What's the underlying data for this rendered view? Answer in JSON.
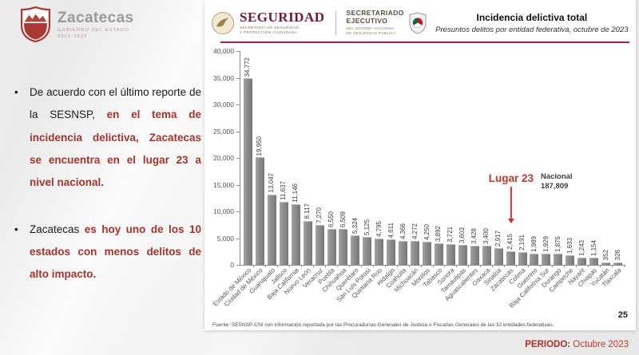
{
  "slide": {
    "page_number": "25",
    "period_label": "PERIODO:",
    "period_value": " Octubre 2023"
  },
  "branding": {
    "zacatecas": {
      "name": "Zacatecas",
      "sub1": "GOBIERNO DEL ESTADO",
      "sub2": "2021-2027"
    },
    "seguridad": {
      "title": "SEGURIDAD",
      "sub1": "SECRETARÍA DE SEGURIDAD",
      "sub2": "Y PROTECCIÓN CIUDADANA"
    },
    "secretariado": {
      "line1": "SECRETARIADO",
      "line2": "EJECUTIVO",
      "sub1": "DEL SISTEMA NACIONAL",
      "sub2": "DE SEGURIDAD PÚBLICA"
    }
  },
  "header": {
    "title": "Incidencia delictiva total",
    "subtitle": "Presuntos delitos por entidad federativa, octubre de 2023"
  },
  "bullets": [
    {
      "normal": "De acuerdo con el último reporte de la SESNSP, ",
      "highlight": "en el tema de incidencia delictiva, Zacatecas se encuentra en el lugar 23 a nivel nacional."
    },
    {
      "normal": "Zacatecas ",
      "highlight": "es hoy uno de los 10 estados con menos delitos de alto impacto."
    }
  ],
  "chart_data": {
    "type": "bar",
    "title": "Incidencia delictiva total",
    "subtitle": "Presuntos delitos por entidad federativa, octubre de 2023",
    "xlabel": "",
    "ylabel": "",
    "ylim": [
      0,
      40000
    ],
    "ytick_step": 5000,
    "yticks": [
      "40,000",
      "35,000",
      "30,000",
      "25,000",
      "20,000",
      "15,000",
      "10,000",
      "5,000",
      "0"
    ],
    "grid": false,
    "bar_color": "#8a8a8a",
    "categories": [
      "Estado de México",
      "Ciudad de México",
      "Guanajuato",
      "Jalisco",
      "Baja California",
      "Nuevo León",
      "Veracruz",
      "Puebla",
      "Chihuahua",
      "Querétaro",
      "San Luis Potosí",
      "Quintana Roo",
      "Hidalgo",
      "Coahuila",
      "Michoacán",
      "Morelos",
      "Tabasco",
      "Sonora",
      "Tamaulipas",
      "Aguascalientes",
      "Oaxaca",
      "Sinaloa",
      "Zacatecas",
      "Colima",
      "Guerrero",
      "Baja California Sur",
      "Durango",
      "Campeche",
      "Nayarit",
      "Chiapas",
      "Yucatán",
      "Tlaxcala"
    ],
    "values": [
      34772,
      19950,
      13047,
      11637,
      11146,
      8117,
      7270,
      6550,
      6509,
      5324,
      5125,
      4795,
      4611,
      4366,
      4272,
      4250,
      3892,
      3721,
      3603,
      3428,
      3400,
      2917,
      2415,
      2191,
      1989,
      1929,
      1875,
      1633,
      1243,
      1154,
      352,
      326
    ],
    "value_labels": [
      "34,772",
      "19,950",
      "13,047",
      "11,637",
      "11,146",
      "8,117",
      "7,270",
      "6,550",
      "6,509",
      "5,324",
      "5,125",
      "4,795",
      "4,611",
      "4,366",
      "4,272",
      "4,250",
      "3,892",
      "3,721",
      "3,603",
      "3,428",
      "3,400",
      "2,917",
      "2,415",
      "2,191",
      "1,989",
      "1,929",
      "1,875",
      "1,633",
      "1,243",
      "1,154",
      "352",
      "326"
    ],
    "annotation": {
      "label": "Lugar 23",
      "target": "Zacatecas",
      "color": "#c0392b"
    },
    "national": {
      "label": "Nacional",
      "value": "187,809"
    }
  },
  "footer": {
    "source": "Fuente: SESNSP-CNI con información reportada por las Procuradurías Generales de Justicia o Fiscalías Generales de las 32 entidades federativas."
  }
}
